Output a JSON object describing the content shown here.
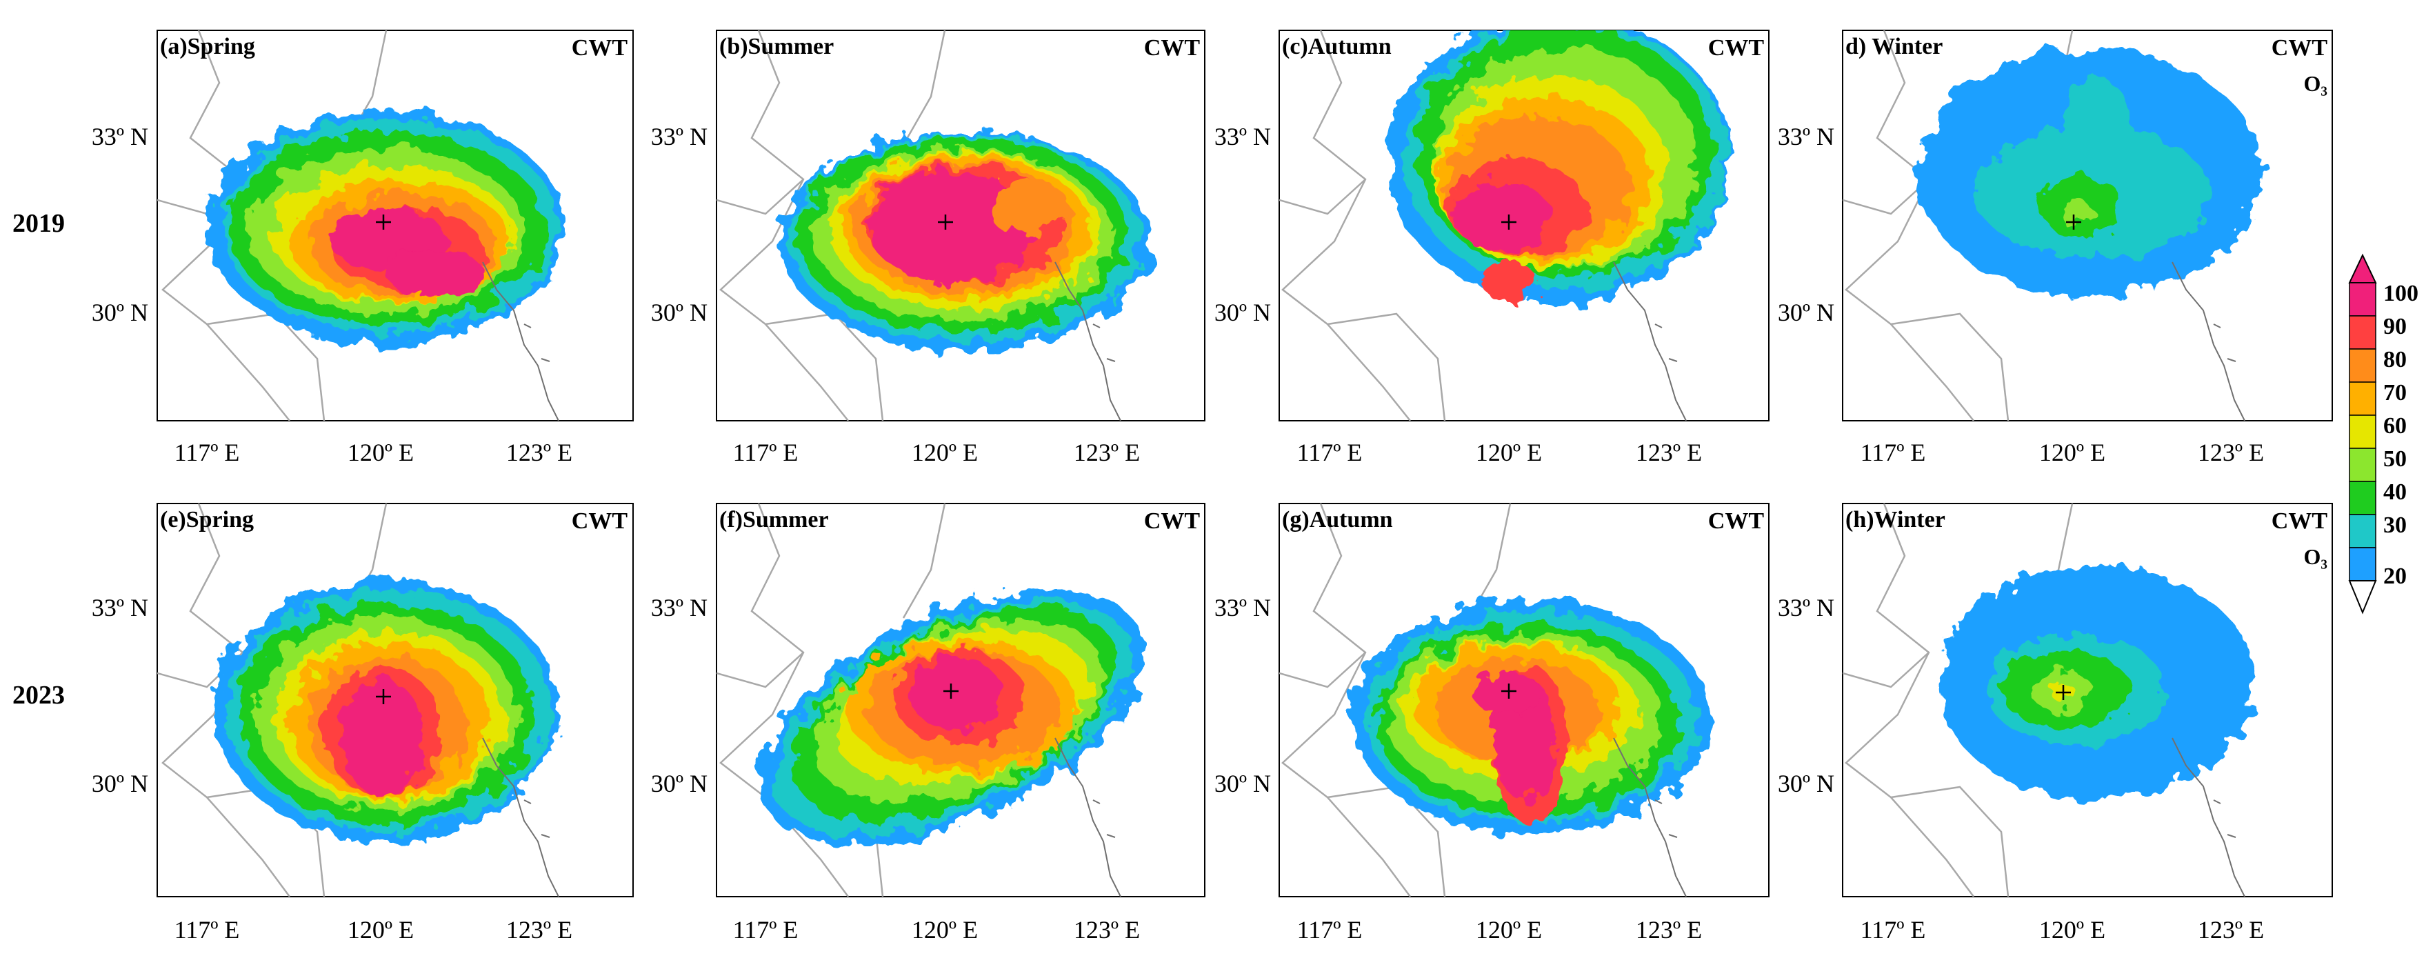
{
  "figure": {
    "year_labels": [
      "2019",
      "2023"
    ],
    "x_ticks": [
      "117º E",
      "120º E",
      "123º E"
    ],
    "y_ticks": [
      "33º N",
      "30º N"
    ],
    "panels": [
      {
        "label": "(a)Spring",
        "method": "CWT",
        "species": "",
        "year": "2019",
        "season": "Spring"
      },
      {
        "label": "(b)Summer",
        "method": "CWT",
        "species": "",
        "year": "2019",
        "season": "Summer"
      },
      {
        "label": "(c)Autumn",
        "method": "CWT",
        "species": "",
        "year": "2019",
        "season": "Autumn"
      },
      {
        "label": "d) Winter",
        "method": "CWT",
        "species": "O₃",
        "year": "2019",
        "season": "Winter"
      },
      {
        "label": "(e)Spring",
        "method": "CWT",
        "species": "",
        "year": "2023",
        "season": "Spring"
      },
      {
        "label": "(f)Summer",
        "method": "CWT",
        "species": "",
        "year": "2023",
        "season": "Summer"
      },
      {
        "label": "(g)Autumn",
        "method": "CWT",
        "species": "",
        "year": "2023",
        "season": "Autumn"
      },
      {
        "label": "(h)Winter",
        "method": "CWT",
        "species": "O₃",
        "year": "2023",
        "season": "Winter"
      }
    ]
  },
  "colorbar": {
    "levels": [
      100,
      90,
      80,
      70,
      60,
      50,
      40,
      30,
      20
    ],
    "labels": [
      "100",
      "90",
      "80",
      "70",
      "60",
      "50",
      "40",
      "30",
      "20"
    ],
    "colors": [
      "#f0207a",
      "#ff4040",
      "#ff8c1a",
      "#ffb000",
      "#e6e600",
      "#8ce62e",
      "#1fcc1f",
      "#1fc8c8",
      "#1ea0ff"
    ]
  }
}
